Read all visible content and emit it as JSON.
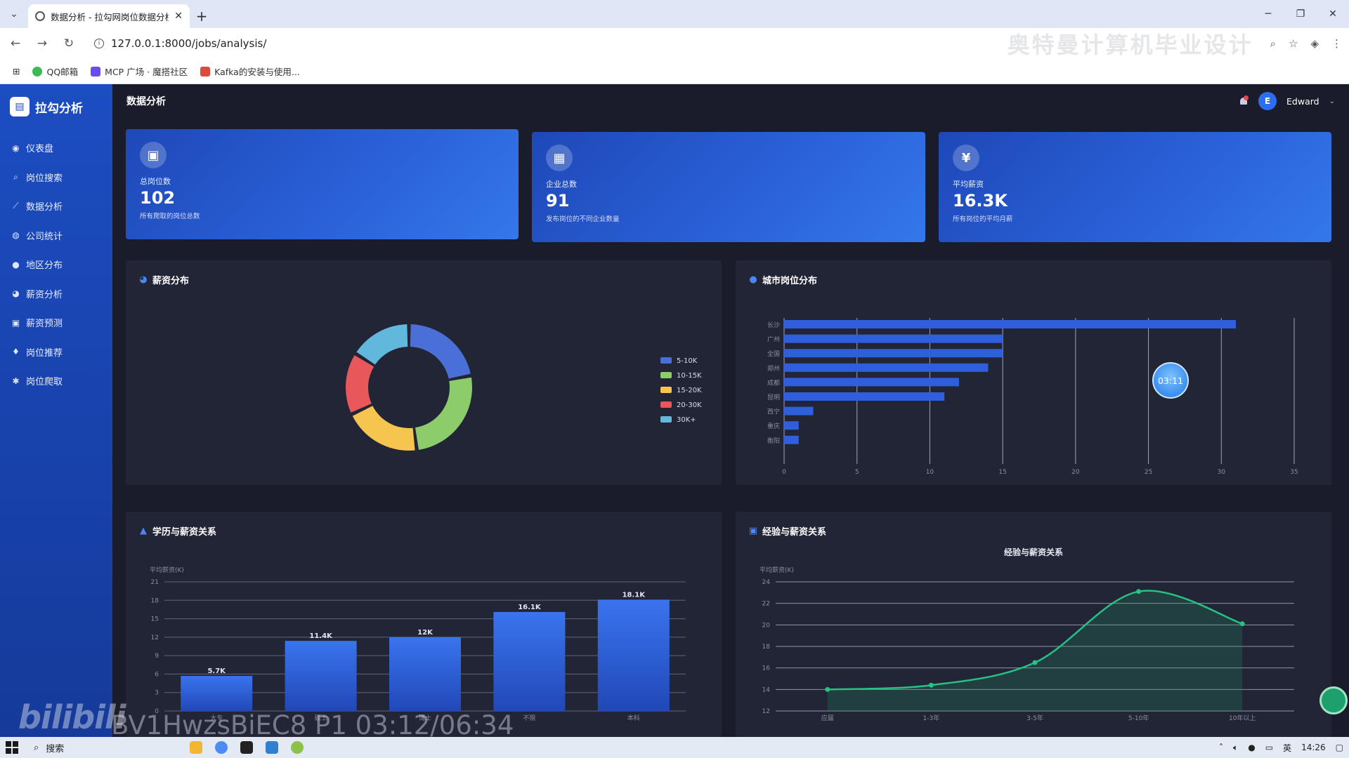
{
  "browser": {
    "tab_title": "数据分析 - 拉勾网岗位数据分析",
    "url": "127.0.0.1:8000/jobs/analysis/",
    "watermark": "奥特曼计算机毕业设计",
    "bookmarks": [
      "QQ邮箱",
      "MCP 广场 · 魔搭社区",
      "Kafka的安装与使用..."
    ]
  },
  "app": {
    "brand": "拉勾分析",
    "page_title": "数据分析",
    "user": "Edward",
    "user_initial": "E",
    "nav": [
      {
        "label": "仪表盘",
        "icon": "dashboard-icon"
      },
      {
        "label": "岗位搜索",
        "icon": "search-icon"
      },
      {
        "label": "数据分析",
        "icon": "chart-icon"
      },
      {
        "label": "公司统计",
        "icon": "globe-icon"
      },
      {
        "label": "地区分布",
        "icon": "pin-icon"
      },
      {
        "label": "薪资分析",
        "icon": "pie-icon"
      },
      {
        "label": "薪资预测",
        "icon": "forecast-icon"
      },
      {
        "label": "岗位推荐",
        "icon": "bulb-icon"
      },
      {
        "label": "岗位爬取",
        "icon": "bug-icon"
      }
    ]
  },
  "stats": [
    {
      "icon": "briefcase-icon",
      "glyph": "▣",
      "label": "总岗位数",
      "value": "102",
      "desc": "所有爬取的岗位总数"
    },
    {
      "icon": "building-icon",
      "glyph": "▦",
      "label": "企业总数",
      "value": "91",
      "desc": "发布岗位的不同企业数量"
    },
    {
      "icon": "yen-icon",
      "glyph": "¥",
      "label": "平均薪资",
      "value": "16.3K",
      "desc": "所有岗位的平均月薪"
    }
  ],
  "panels": {
    "salary_dist": "薪资分布",
    "city_dist": "城市岗位分布",
    "edu_salary": "学历与薪资关系",
    "exp_salary": "经验与薪资关系"
  },
  "overlay": {
    "video_time": "03:11",
    "bili_logo": "bilibili",
    "bv_code": "BV1HwzsBiEC8 P1 03:12/06:34"
  },
  "taskbar": {
    "search": "搜索",
    "ime": "英",
    "time": "14:26"
  },
  "chart_data": [
    {
      "type": "pie",
      "title": "薪资分布",
      "donut": true,
      "categories": [
        "5-10K",
        "10-15K",
        "15-20K",
        "20-30K",
        "30K+"
      ],
      "values": [
        22,
        26,
        20,
        16,
        16
      ],
      "colors": [
        "#4a6fd6",
        "#8ccc6a",
        "#f5c550",
        "#e8585a",
        "#62b8dc"
      ],
      "legend": "right"
    },
    {
      "type": "bar",
      "orientation": "horizontal",
      "title": "城市岗位分布",
      "categories": [
        "长沙",
        "广州",
        "全国",
        "郑州",
        "成都",
        "昆明",
        "西宁",
        "重庆",
        "衡阳"
      ],
      "values": [
        31,
        15,
        15,
        14,
        12,
        11,
        2,
        1,
        1
      ],
      "xlim": [
        0,
        35
      ],
      "xticks": [
        0,
        5,
        10,
        15,
        20,
        25,
        30,
        35
      ]
    },
    {
      "type": "bar",
      "title": "学历与薪资关系",
      "ylabel": "平均薪资(K)",
      "categories": [
        "大专",
        "硕士",
        "博士",
        "不限",
        "本科"
      ],
      "values": [
        5.7,
        11.4,
        12,
        16.1,
        18.1
      ],
      "data_labels": [
        "5.7K",
        "11.4K",
        "12K",
        "16.1K",
        "18.1K"
      ],
      "ylim": [
        0,
        21
      ],
      "yticks": [
        0,
        3,
        6,
        9,
        12,
        15,
        18,
        21
      ]
    },
    {
      "type": "line",
      "title": "经验与薪资关系",
      "chart_title": "经验与薪资关系",
      "ylabel": "平均薪资(K)",
      "categories": [
        "应届",
        "1-3年",
        "3-5年",
        "5-10年",
        "10年以上"
      ],
      "values": [
        14,
        14.4,
        16.5,
        23.1,
        20.1
      ],
      "ylim": [
        12,
        24
      ],
      "yticks": [
        12,
        14,
        16,
        18,
        20,
        22,
        24
      ],
      "area": true,
      "smooth": true
    }
  ]
}
